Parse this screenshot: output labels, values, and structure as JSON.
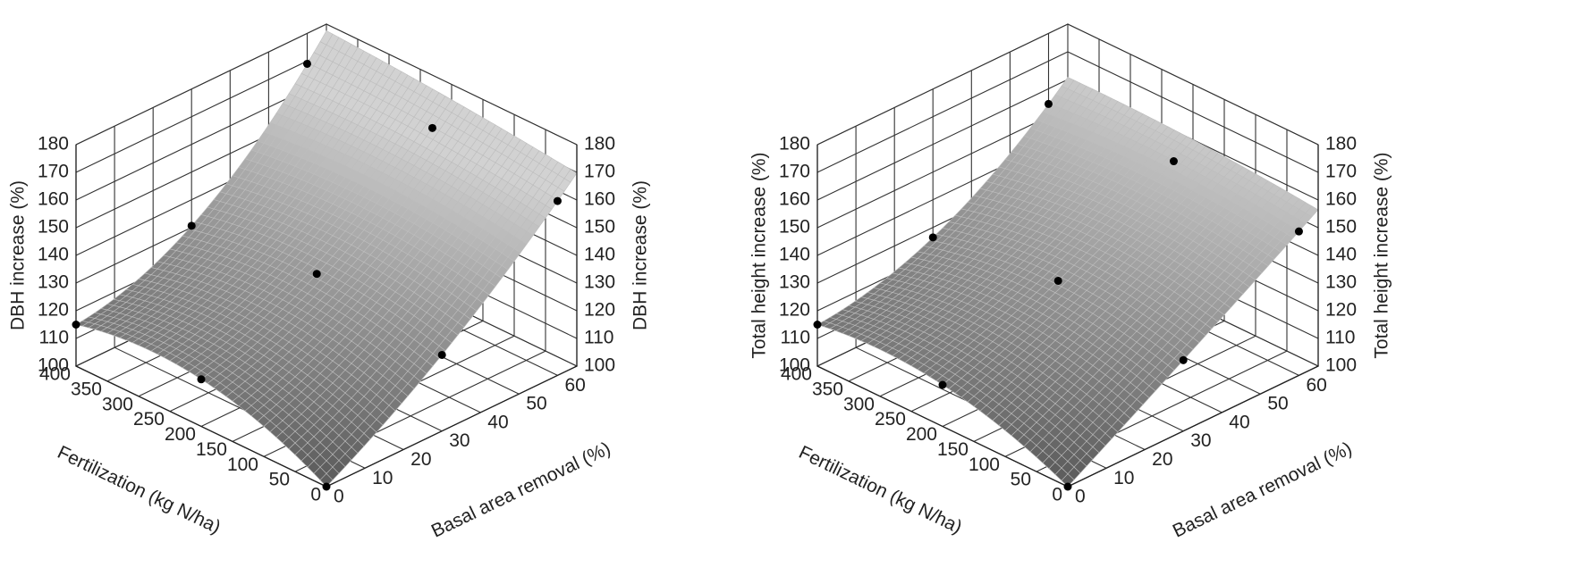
{
  "chart_data": [
    {
      "type": "surface",
      "xlabel": "Fertilization (kg N/ha)",
      "ylabel": "Basal area removal (%)",
      "zlabel": "DBH increase (%)",
      "xlim": [
        0,
        400
      ],
      "xticks": [
        0,
        50,
        100,
        150,
        200,
        250,
        300,
        350,
        400
      ],
      "ylim": [
        0,
        65
      ],
      "yticks": [
        0,
        10,
        20,
        30,
        40,
        50,
        60
      ],
      "zlim": [
        100,
        180
      ],
      "zticks": [
        100,
        110,
        120,
        130,
        140,
        150,
        160,
        170,
        180
      ],
      "x": [
        0,
        200,
        400,
        0,
        200,
        400,
        0,
        200,
        400
      ],
      "y": [
        0,
        0,
        0,
        30,
        30,
        30,
        60,
        60,
        60
      ],
      "z": [
        100,
        117,
        115,
        127.5,
        135,
        130.6,
        163,
        167.6,
        169
      ],
      "surface_colors": [
        "#5e5e5e",
        "#d2d2d2"
      ],
      "mesh_color": "#bdbdbd",
      "point_color": "#000000"
    },
    {
      "type": "surface",
      "xlabel": "Fertilization (kg N/ha)",
      "ylabel": "Basal area removal (%)",
      "zlabel": "Total height increase (%)",
      "xlim": [
        0,
        400
      ],
      "xticks": [
        0,
        50,
        100,
        150,
        200,
        250,
        300,
        350,
        400
      ],
      "ylim": [
        0,
        65
      ],
      "yticks": [
        0,
        10,
        20,
        30,
        40,
        50,
        60
      ],
      "zlim": [
        100,
        180
      ],
      "zticks": [
        100,
        110,
        120,
        130,
        140,
        150,
        160,
        170,
        180
      ],
      "x": [
        0,
        200,
        400,
        0,
        200,
        400,
        0,
        200,
        400
      ],
      "y": [
        0,
        0,
        0,
        30,
        30,
        30,
        60,
        60,
        60
      ],
      "z": [
        100,
        115,
        115,
        125.6,
        132.5,
        126.4,
        152,
        155.6,
        154.5
      ],
      "surface_colors": [
        "#5e5e5e",
        "#d2d2d2"
      ],
      "mesh_color": "#bdbdbd",
      "point_color": "#000000"
    }
  ]
}
